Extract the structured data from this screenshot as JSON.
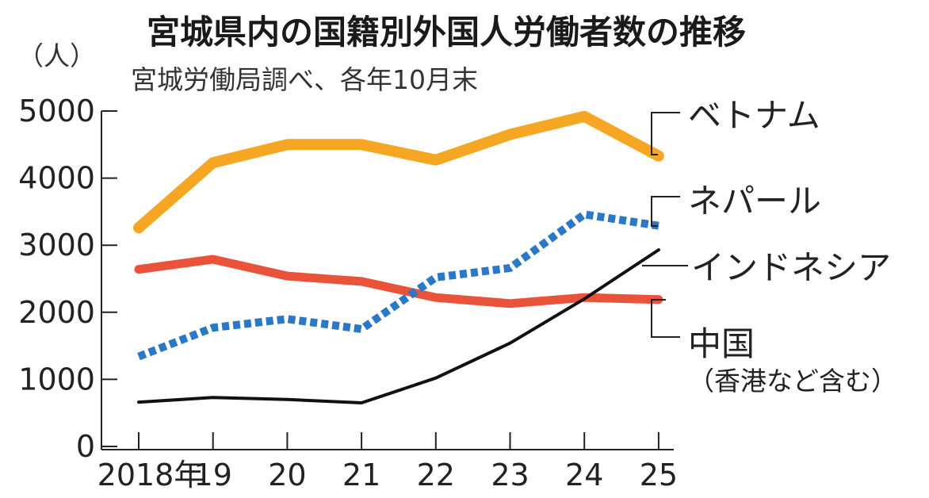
{
  "chart_data": {
    "type": "line",
    "title": "宮城県内の国籍別外国人労働者数の推移",
    "subtitle": "宮城労働局調べ、各年10月末",
    "ylabel": "（人）",
    "xlabel": "",
    "x": [
      "2018年",
      "19",
      "20",
      "21",
      "22",
      "23",
      "24",
      "25"
    ],
    "ylim": [
      0,
      5000
    ],
    "yticks": [
      "0",
      "1000",
      "2000",
      "3000",
      "4000",
      "5000"
    ],
    "grid": false,
    "legend": "right, labels at line ends",
    "series": [
      {
        "name": "ベトナム",
        "color": "#f5a623",
        "style": "solid-thick",
        "values": [
          3260,
          4230,
          4500,
          4500,
          4270,
          4650,
          4920,
          4330
        ]
      },
      {
        "name": "ネパール",
        "color": "#2a78c6",
        "style": "dotted",
        "values": [
          1340,
          1770,
          1900,
          1750,
          2520,
          2660,
          3460,
          3290
        ]
      },
      {
        "name": "インドネシア",
        "color": "#111111",
        "style": "solid-thin",
        "values": [
          660,
          730,
          700,
          650,
          1020,
          1540,
          2200,
          2930
        ]
      },
      {
        "name": "中国",
        "note": "（香港など含む）",
        "color": "#e8533a",
        "style": "solid",
        "values": [
          2640,
          2790,
          2540,
          2460,
          2220,
          2130,
          2220,
          2190
        ]
      }
    ]
  }
}
